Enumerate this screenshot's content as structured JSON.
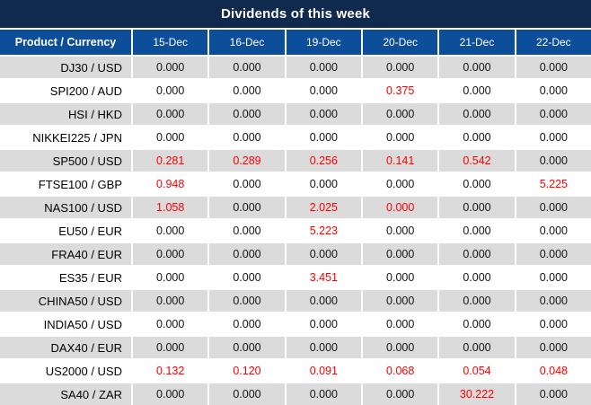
{
  "title": "Dividends of this week",
  "colors": {
    "title_bar_bg": "#102a4e",
    "header_bg": "#0d4e9b",
    "header_text": "#ffffff",
    "row_alt_bg": "#dbdbdb",
    "row_bg": "#ffffff",
    "divider": "#ffffff",
    "value_black": "#141414",
    "value_red": "#fe0000"
  },
  "table": {
    "product_header": "Product / Currency",
    "date_headers": [
      "15-Dec",
      "16-Dec",
      "19-Dec",
      "20-Dec",
      "21-Dec",
      "22-Dec"
    ],
    "rows": [
      {
        "label": "DJ30 / USD",
        "values": [
          "0.000",
          "0.000",
          "0.000",
          "0.000",
          "0.000",
          "0.000"
        ],
        "red": [
          false,
          false,
          false,
          false,
          false,
          false
        ]
      },
      {
        "label": "SPI200 / AUD",
        "values": [
          "0.000",
          "0.000",
          "0.000",
          "0.375",
          "0.000",
          "0.000"
        ],
        "red": [
          false,
          false,
          false,
          true,
          false,
          false
        ]
      },
      {
        "label": "HSI / HKD",
        "values": [
          "0.000",
          "0.000",
          "0.000",
          "0.000",
          "0.000",
          "0.000"
        ],
        "red": [
          false,
          false,
          false,
          false,
          false,
          false
        ]
      },
      {
        "label": "NIKKEI225 / JPN",
        "values": [
          "0.000",
          "0.000",
          "0.000",
          "0.000",
          "0.000",
          "0.000"
        ],
        "red": [
          false,
          false,
          false,
          false,
          false,
          false
        ]
      },
      {
        "label": "SP500 / USD",
        "values": [
          "0.281",
          "0.289",
          "0.256",
          "0.141",
          "0.542",
          "0.000"
        ],
        "red": [
          true,
          true,
          true,
          true,
          true,
          false
        ]
      },
      {
        "label": "FTSE100 / GBP",
        "values": [
          "0.948",
          "0.000",
          "0.000",
          "0.000",
          "0.000",
          "5.225"
        ],
        "red": [
          true,
          false,
          false,
          false,
          false,
          true
        ]
      },
      {
        "label": "NAS100 / USD",
        "values": [
          "1.058",
          "0.000",
          "2.025",
          "0.000",
          "0.000",
          "0.000"
        ],
        "red": [
          true,
          false,
          true,
          true,
          false,
          false
        ]
      },
      {
        "label": "EU50 / EUR",
        "values": [
          "0.000",
          "0.000",
          "5.223",
          "0.000",
          "0.000",
          "0.000"
        ],
        "red": [
          false,
          false,
          true,
          false,
          false,
          false
        ]
      },
      {
        "label": "FRA40 / EUR",
        "values": [
          "0.000",
          "0.000",
          "0.000",
          "0.000",
          "0.000",
          "0.000"
        ],
        "red": [
          false,
          false,
          false,
          false,
          false,
          false
        ]
      },
      {
        "label": "ES35 / EUR",
        "values": [
          "0.000",
          "0.000",
          "3.451",
          "0.000",
          "0.000",
          "0.000"
        ],
        "red": [
          false,
          false,
          true,
          false,
          false,
          false
        ]
      },
      {
        "label": "CHINA50 / USD",
        "values": [
          "0.000",
          "0.000",
          "0.000",
          "0.000",
          "0.000",
          "0.000"
        ],
        "red": [
          false,
          false,
          false,
          false,
          false,
          false
        ]
      },
      {
        "label": "INDIA50 / USD",
        "values": [
          "0.000",
          "0.000",
          "0.000",
          "0.000",
          "0.000",
          "0.000"
        ],
        "red": [
          false,
          false,
          false,
          false,
          false,
          false
        ]
      },
      {
        "label": "DAX40 / EUR",
        "values": [
          "0.000",
          "0.000",
          "0.000",
          "0.000",
          "0.000",
          "0.000"
        ],
        "red": [
          false,
          false,
          false,
          false,
          false,
          false
        ]
      },
      {
        "label": "US2000 / USD",
        "values": [
          "0.132",
          "0.120",
          "0.091",
          "0.068",
          "0.054",
          "0.048"
        ],
        "red": [
          true,
          true,
          true,
          true,
          true,
          true
        ]
      },
      {
        "label": "SA40 / ZAR",
        "values": [
          "0.000",
          "0.000",
          "0.000",
          "0.000",
          "30.222",
          "0.000"
        ],
        "red": [
          false,
          false,
          false,
          false,
          true,
          false
        ]
      }
    ]
  }
}
